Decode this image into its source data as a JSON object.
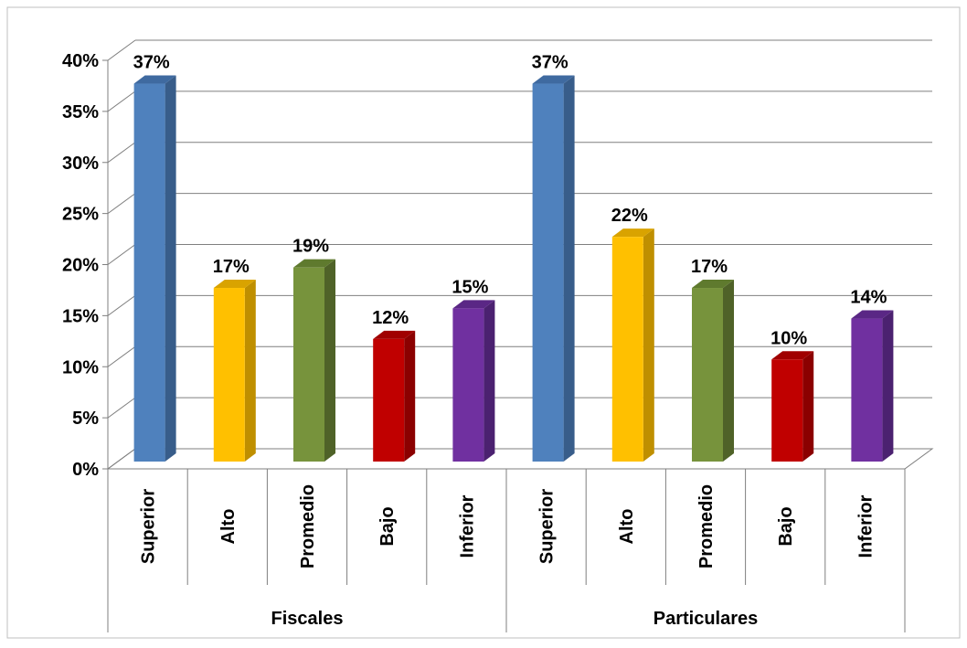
{
  "chart_data": {
    "type": "bar",
    "title": "",
    "xlabel": "",
    "ylabel": "",
    "ylim": [
      0,
      40
    ],
    "y_ticks": [
      "0%",
      "5%",
      "10%",
      "15%",
      "20%",
      "25%",
      "30%",
      "35%",
      "40%"
    ],
    "grid": true,
    "legend": "none",
    "groups": [
      "Fiscales",
      "Particulares"
    ],
    "categories": [
      "Superior",
      "Alto",
      "Promedio",
      "Bajo",
      "Inferior",
      "Superior",
      "Alto",
      "Promedio",
      "Bajo",
      "Inferior"
    ],
    "values": [
      37,
      17,
      19,
      12,
      15,
      37,
      22,
      17,
      10,
      14
    ],
    "value_labels": [
      "37%",
      "17%",
      "19%",
      "12%",
      "15%",
      "37%",
      "22%",
      "17%",
      "10%",
      "14%"
    ],
    "colors": [
      "#4F81BD",
      "#FFC000",
      "#77933C",
      "#C00000",
      "#7030A0",
      "#4F81BD",
      "#FFC000",
      "#77933C",
      "#C00000",
      "#7030A0"
    ],
    "side_colors": [
      "#385D8A",
      "#BF8F00",
      "#4F6228",
      "#8B0000",
      "#4B2170",
      "#385D8A",
      "#BF8F00",
      "#4F6228",
      "#8B0000",
      "#4B2170"
    ],
    "top_colors": [
      "#3F6AA0",
      "#D9A300",
      "#5F7A2E",
      "#A00000",
      "#5A2785",
      "#3F6AA0",
      "#D9A300",
      "#5F7A2E",
      "#A00000",
      "#5A2785"
    ]
  }
}
